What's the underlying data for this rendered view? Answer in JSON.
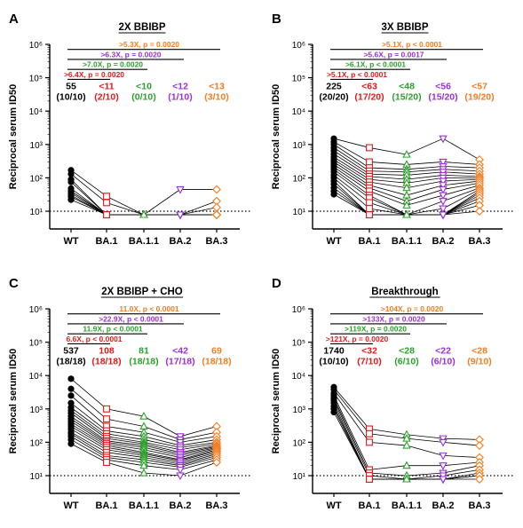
{
  "colors": {
    "WT": "#000000",
    "BA.1": "#e31a1c",
    "BA.1.1": "#2ca02c",
    "BA.2": "#9b30d9",
    "BA.3": "#f57c1f"
  },
  "chart_data": [
    {
      "type": "scatter",
      "panel_letter": "A",
      "title": "2X BBIBP",
      "ylabel": "Reciprocal serum ID50",
      "yscale": "log",
      "ylim": [
        10,
        1000000
      ],
      "ytick_labels": [
        "10¹",
        "10²",
        "10³",
        "10⁴",
        "10⁵",
        "10⁶"
      ],
      "categories": [
        "WT",
        "BA.1",
        "BA.1.1",
        "BA.2",
        "BA.3"
      ],
      "gmt": [
        {
          "value": "55",
          "count": "(10/10)"
        },
        {
          "value": "<11",
          "count": "(2/10)"
        },
        {
          "value": "<10",
          "count": "(0/10)"
        },
        {
          "value": "<12",
          "count": "(1/10)"
        },
        {
          "value": "<13",
          "count": "(3/10)"
        }
      ],
      "brackets": [
        {
          "to": "BA.3",
          "label": ">5.3X, p = 0.0020"
        },
        {
          "to": "BA.2",
          "label": ">6.3X, p = 0.0020"
        },
        {
          "to": "BA.1.1",
          "label": ">7.0X, p = 0.0020"
        },
        {
          "to": "BA.1",
          "label": ">6.4X, p = 0.0020"
        }
      ],
      "series": [
        {
          "name": "WT",
          "values": [
            170,
            130,
            90,
            75,
            48,
            40,
            35,
            30,
            27,
            22
          ]
        },
        {
          "name": "BA.1",
          "values": [
            28,
            18,
            8,
            8,
            8,
            8,
            8,
            8,
            8,
            8
          ]
        },
        {
          "name": "BA.1.1",
          "values": [
            8,
            8,
            8,
            8,
            8,
            8,
            8,
            8,
            8,
            8
          ]
        },
        {
          "name": "BA.2",
          "values": [
            45,
            8,
            8,
            8,
            8,
            8,
            8,
            8,
            8,
            8
          ]
        },
        {
          "name": "BA.3",
          "values": [
            45,
            20,
            13,
            8,
            8,
            8,
            8,
            8,
            8,
            8
          ]
        }
      ]
    },
    {
      "type": "scatter",
      "panel_letter": "B",
      "title": "3X BBIBP",
      "ylabel": "Reciprocal serum ID50",
      "yscale": "log",
      "ylim": [
        10,
        1000000
      ],
      "ytick_labels": [
        "10¹",
        "10²",
        "10³",
        "10⁴",
        "10⁵",
        "10⁶"
      ],
      "categories": [
        "WT",
        "BA.1",
        "BA.1.1",
        "BA.2",
        "BA.3"
      ],
      "gmt": [
        {
          "value": "225",
          "count": "(20/20)"
        },
        {
          "value": "<63",
          "count": "(17/20)"
        },
        {
          "value": "<48",
          "count": "(15/20)"
        },
        {
          "value": "<56",
          "count": "(15/20)"
        },
        {
          "value": "<57",
          "count": "(19/20)"
        }
      ],
      "brackets": [
        {
          "to": "BA.3",
          "label": ">5.1X, p < 0.0001"
        },
        {
          "to": "BA.2",
          "label": ">5.6X, p = 0.0017"
        },
        {
          "to": "BA.1.1",
          "label": ">6.1X, p < 0.0001"
        },
        {
          "to": "BA.1",
          "label": ">5.1X, p < 0.0001"
        }
      ],
      "series": [
        {
          "name": "WT",
          "values": [
            1500,
            1200,
            1000,
            800,
            650,
            520,
            420,
            350,
            300,
            250,
            210,
            180,
            150,
            120,
            100,
            80,
            65,
            50,
            40,
            32
          ]
        },
        {
          "name": "BA.1",
          "values": [
            800,
            300,
            200,
            160,
            130,
            110,
            90,
            75,
            60,
            50,
            40,
            30,
            25,
            18,
            12,
            8,
            8,
            8,
            8,
            8
          ]
        },
        {
          "name": "BA.1.1",
          "values": [
            500,
            250,
            180,
            150,
            120,
            90,
            70,
            50,
            30,
            20,
            15,
            8,
            8,
            8,
            8,
            8,
            8,
            8,
            8,
            8
          ]
        },
        {
          "name": "BA.2",
          "values": [
            1500,
            300,
            220,
            180,
            150,
            120,
            100,
            80,
            60,
            45,
            30,
            20,
            12,
            8,
            8,
            8,
            8,
            8,
            8,
            8
          ]
        },
        {
          "name": "BA.3",
          "values": [
            350,
            250,
            200,
            160,
            130,
            110,
            100,
            90,
            80,
            70,
            60,
            50,
            45,
            40,
            35,
            30,
            25,
            20,
            15,
            10
          ]
        }
      ]
    },
    {
      "type": "scatter",
      "panel_letter": "C",
      "title": "2X BBIBP + CHO",
      "ylabel": "Reciprocal serum ID50",
      "yscale": "log",
      "ylim": [
        10,
        1000000
      ],
      "ytick_labels": [
        "10¹",
        "10²",
        "10³",
        "10⁴",
        "10⁵",
        "10⁶"
      ],
      "categories": [
        "WT",
        "BA.1",
        "BA.1.1",
        "BA.2",
        "BA.3"
      ],
      "gmt": [
        {
          "value": "537",
          "count": "(18/18)"
        },
        {
          "value": "108",
          "count": "(18/18)"
        },
        {
          "value": "81",
          "count": "(18/18)"
        },
        {
          "value": "<42",
          "count": "(17/18)"
        },
        {
          "value": "69",
          "count": "(18/18)"
        }
      ],
      "brackets": [
        {
          "to": "BA.3",
          "label": "11.0X, p < 0.0001"
        },
        {
          "to": "BA.2",
          "label": ">22.9X, p < 0.0001"
        },
        {
          "to": "BA.1.1",
          "label": "11.9X, p < 0.0001"
        },
        {
          "to": "BA.1",
          "label": "6.6X, p < 0.0001"
        }
      ],
      "series": [
        {
          "name": "WT",
          "values": [
            8000,
            4000,
            2500,
            1500,
            1100,
            900,
            750,
            600,
            500,
            420,
            350,
            300,
            250,
            200,
            180,
            150,
            120,
            90
          ]
        },
        {
          "name": "BA.1",
          "values": [
            1000,
            500,
            300,
            220,
            180,
            150,
            130,
            110,
            100,
            90,
            80,
            70,
            60,
            50,
            40,
            35,
            30,
            25
          ]
        },
        {
          "name": "BA.1.1",
          "values": [
            600,
            300,
            200,
            150,
            120,
            100,
            90,
            80,
            70,
            60,
            50,
            45,
            40,
            35,
            30,
            25,
            20,
            12
          ]
        },
        {
          "name": "BA.2",
          "values": [
            150,
            120,
            100,
            80,
            70,
            60,
            50,
            45,
            40,
            35,
            30,
            28,
            25,
            22,
            20,
            18,
            15,
            10
          ]
        },
        {
          "name": "BA.3",
          "values": [
            300,
            200,
            150,
            120,
            100,
            90,
            80,
            75,
            70,
            65,
            60,
            55,
            50,
            45,
            40,
            35,
            30,
            25
          ]
        }
      ]
    },
    {
      "type": "scatter",
      "panel_letter": "D",
      "title": "Breakthrough",
      "ylabel": "Reciprocal serum ID50",
      "yscale": "log",
      "ylim": [
        10,
        1000000
      ],
      "ytick_labels": [
        "10¹",
        "10²",
        "10³",
        "10⁴",
        "10⁵",
        "10⁶"
      ],
      "categories": [
        "WT",
        "BA.1",
        "BA.1.1",
        "BA.2",
        "BA.3"
      ],
      "gmt": [
        {
          "value": "1740",
          "count": "(10/10)"
        },
        {
          "value": "<32",
          "count": "(7/10)"
        },
        {
          "value": "<28",
          "count": "(6/10)"
        },
        {
          "value": "<22",
          "count": "(6/10)"
        },
        {
          "value": "<28",
          "count": "(9/10)"
        }
      ],
      "brackets": [
        {
          "to": "BA.3",
          "label": ">104X, p = 0.0020"
        },
        {
          "to": "BA.2",
          "label": ">133X, p = 0.0020"
        },
        {
          "to": "BA.1.1",
          "label": ">119X, p = 0.0020"
        },
        {
          "to": "BA.1",
          "label": ">121X, p = 0.0020"
        }
      ],
      "series": [
        {
          "name": "WT",
          "values": [
            4500,
            3800,
            3000,
            2500,
            2100,
            1800,
            1500,
            1200,
            1000,
            800
          ]
        },
        {
          "name": "BA.1",
          "values": [
            250,
            180,
            100,
            15,
            12,
            10,
            8,
            8,
            8,
            8
          ]
        },
        {
          "name": "BA.1.1",
          "values": [
            170,
            130,
            80,
            20,
            10,
            8,
            8,
            8,
            8,
            8
          ]
        },
        {
          "name": "BA.2",
          "values": [
            130,
            100,
            40,
            20,
            12,
            10,
            8,
            8,
            8,
            8
          ]
        },
        {
          "name": "BA.3",
          "values": [
            120,
            80,
            35,
            25,
            20,
            15,
            12,
            10,
            10,
            8
          ]
        }
      ]
    }
  ]
}
